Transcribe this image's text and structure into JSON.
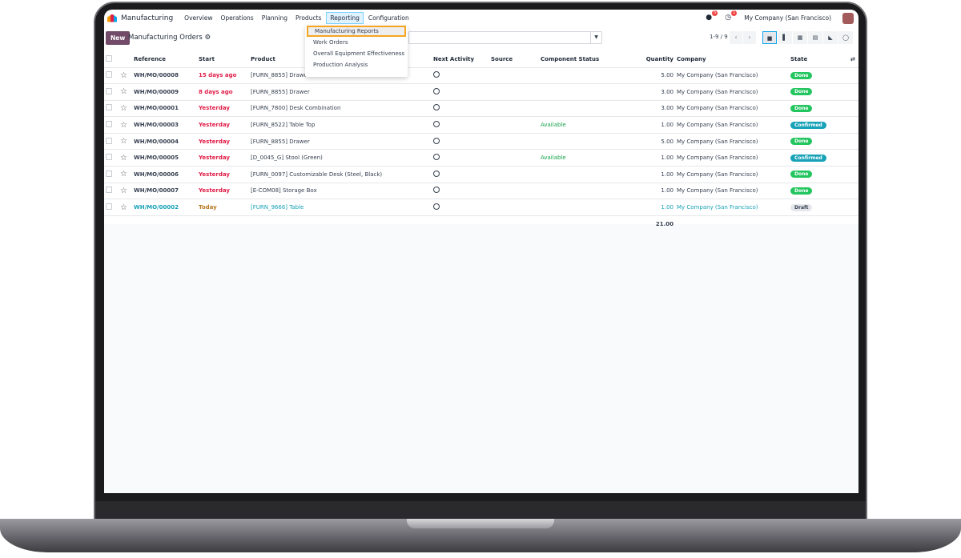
{
  "nav": {
    "app": "Manufacturing",
    "menus": [
      "Overview",
      "Operations",
      "Planning",
      "Products",
      "Reporting",
      "Configuration"
    ],
    "active_menu": "Reporting",
    "messages_count": "5",
    "activities_count": "1",
    "company": "My Company (San Francisco)"
  },
  "control": {
    "new_label": "New",
    "title": "Manufacturing Orders",
    "pager": "1-9 / 9"
  },
  "reporting_menu": {
    "items": [
      "Manufacturing Reports",
      "Work Orders",
      "Overall Equipment Effectiveness",
      "Production Analysis"
    ],
    "highlighted": "Manufacturing Reports"
  },
  "table": {
    "headers": [
      "Reference",
      "Start",
      "Product",
      "Next Activity",
      "Source",
      "Component Status",
      "Quantity",
      "Company",
      "State"
    ],
    "rows": [
      {
        "ref": "WH/MO/00008",
        "start": "15 days ago",
        "product": "[FURN_8855] Drawer",
        "component": "",
        "qty": "5.00",
        "company": "My Company (San Francisco)",
        "state": "Done",
        "tone": "late"
      },
      {
        "ref": "WH/MO/00009",
        "start": "8 days ago",
        "product": "[FURN_8855] Drawer",
        "component": "",
        "qty": "3.00",
        "company": "My Company (San Francisco)",
        "state": "Done",
        "tone": "late"
      },
      {
        "ref": "WH/MO/00001",
        "start": "Yesterday",
        "product": "[FURN_7800] Desk Combination",
        "component": "",
        "qty": "3.00",
        "company": "My Company (San Francisco)",
        "state": "Done",
        "tone": "late"
      },
      {
        "ref": "WH/MO/00003",
        "start": "Yesterday",
        "product": "[FURN_8522] Table Top",
        "component": "Available",
        "qty": "1.00",
        "company": "My Company (San Francisco)",
        "state": "Confirmed",
        "tone": "late"
      },
      {
        "ref": "WH/MO/00004",
        "start": "Yesterday",
        "product": "[FURN_8855] Drawer",
        "component": "",
        "qty": "5.00",
        "company": "My Company (San Francisco)",
        "state": "Done",
        "tone": "late"
      },
      {
        "ref": "WH/MO/00005",
        "start": "Yesterday",
        "product": "[D_0045_G] Stool (Green)",
        "component": "Available",
        "qty": "1.00",
        "company": "My Company (San Francisco)",
        "state": "Confirmed",
        "tone": "late"
      },
      {
        "ref": "WH/MO/00006",
        "start": "Yesterday",
        "product": "[FURN_0097] Customizable Desk (Steel, Black)",
        "component": "",
        "qty": "1.00",
        "company": "My Company (San Francisco)",
        "state": "Done",
        "tone": "late"
      },
      {
        "ref": "WH/MO/00007",
        "start": "Yesterday",
        "product": "[E-COM08] Storage Box",
        "component": "",
        "qty": "1.00",
        "company": "My Company (San Francisco)",
        "state": "Done",
        "tone": "late"
      },
      {
        "ref": "WH/MO/00002",
        "start": "Today",
        "product": "[FURN_9666] Table",
        "component": "",
        "qty": "1.00",
        "company": "My Company (San Francisco)",
        "state": "Draft",
        "tone": "today"
      }
    ],
    "total_qty": "21.00"
  }
}
